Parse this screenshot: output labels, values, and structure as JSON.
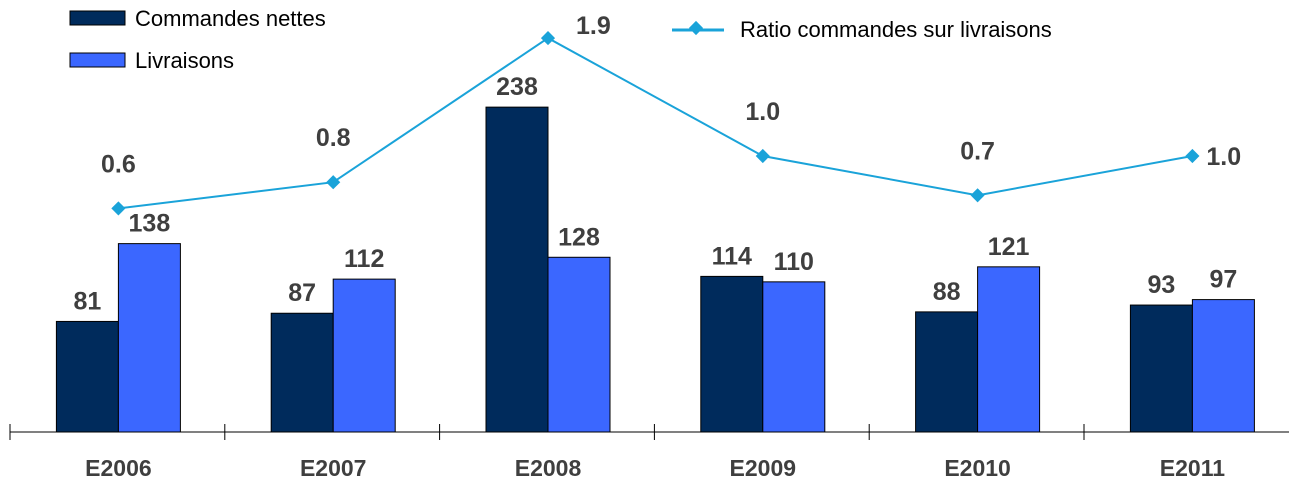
{
  "chart_data": {
    "type": "bar",
    "categories": [
      "E2006",
      "E2007",
      "E2008",
      "E2009",
      "E2010",
      "E2011"
    ],
    "series": [
      {
        "name": "Commandes nettes",
        "type": "bar",
        "color": "#002b5c",
        "values": [
          81,
          87,
          238,
          114,
          88,
          93
        ]
      },
      {
        "name": "Livraisons",
        "type": "bar",
        "color": "#3b67ff",
        "values": [
          138,
          112,
          128,
          110,
          121,
          97
        ]
      },
      {
        "name": "Ratio commandes sur livraisons",
        "type": "line",
        "color": "#1aa3d9",
        "values": [
          0.6,
          0.8,
          1.9,
          1.0,
          0.7,
          1.0
        ]
      }
    ],
    "value_labels": {
      "bars": [
        [
          "81",
          "87",
          "238",
          "114",
          "88",
          "93"
        ],
        [
          "138",
          "112",
          "128",
          "110",
          "121",
          "97"
        ]
      ],
      "ratio": [
        "0.6",
        "0.8",
        "1.9",
        "1.0",
        "0.7",
        "1.0"
      ]
    },
    "ylim_bars": [
      0,
      250
    ],
    "legend_position": "top-left (bars), top-right (line)",
    "grid": false
  }
}
